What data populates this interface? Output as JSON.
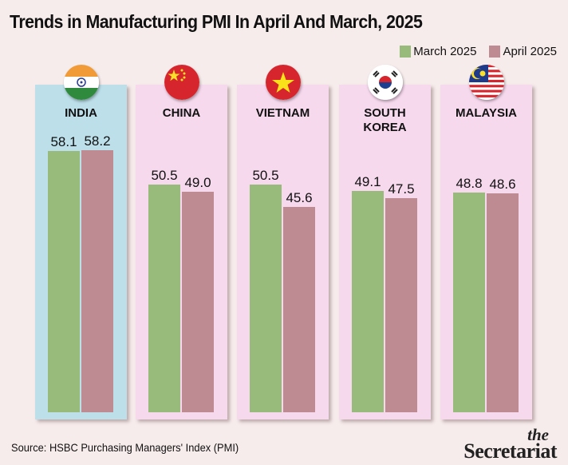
{
  "chart_data": {
    "type": "bar",
    "title": "Trends in Manufacturing PMI In April And March, 2025",
    "categories": [
      "INDIA",
      "CHINA",
      "VIETNAM",
      "SOUTH KOREA",
      "MALAYSIA"
    ],
    "series": [
      {
        "name": "March 2025",
        "color": "#98bb7c",
        "values": [
          58.1,
          50.5,
          50.5,
          49.1,
          48.8
        ],
        "labels": [
          "58.1",
          "50.5",
          "50.5",
          "49.1",
          "48.8"
        ]
      },
      {
        "name": "April 2025",
        "color": "#bf8b93",
        "values": [
          58.2,
          49.0,
          45.6,
          47.5,
          48.6
        ],
        "labels": [
          "58.2",
          "49.0",
          "45.6",
          "47.5",
          "48.6"
        ]
      }
    ],
    "panels": [
      {
        "name": "INDIA",
        "lines": [
          "INDIA"
        ],
        "flag": "india-flag",
        "bg": "#bcdfea"
      },
      {
        "name": "CHINA",
        "lines": [
          "CHINA"
        ],
        "flag": "china-flag",
        "bg": "#f7d9ee"
      },
      {
        "name": "VIETNAM",
        "lines": [
          "VIETNAM"
        ],
        "flag": "vietnam-flag",
        "bg": "#f7d9ee"
      },
      {
        "name": "SOUTH KOREA",
        "lines": [
          "SOUTH",
          "KOREA"
        ],
        "flag": "south-korea-flag",
        "bg": "#f7d9ee"
      },
      {
        "name": "MALAYSIA",
        "lines": [
          "MALAYSIA"
        ],
        "flag": "malaysia-flag",
        "bg": "#f7d9ee"
      }
    ],
    "xlabel": "",
    "ylabel": "",
    "ylim": [
      0,
      58.2
    ],
    "grid": false,
    "legend": "top-right"
  },
  "legend": {
    "march": "March 2025",
    "april": "April 2025"
  },
  "source": "Source: HSBC Purchasing Managers' Index (PMI)",
  "logo": {
    "the": "the",
    "name": "Secretariat"
  }
}
